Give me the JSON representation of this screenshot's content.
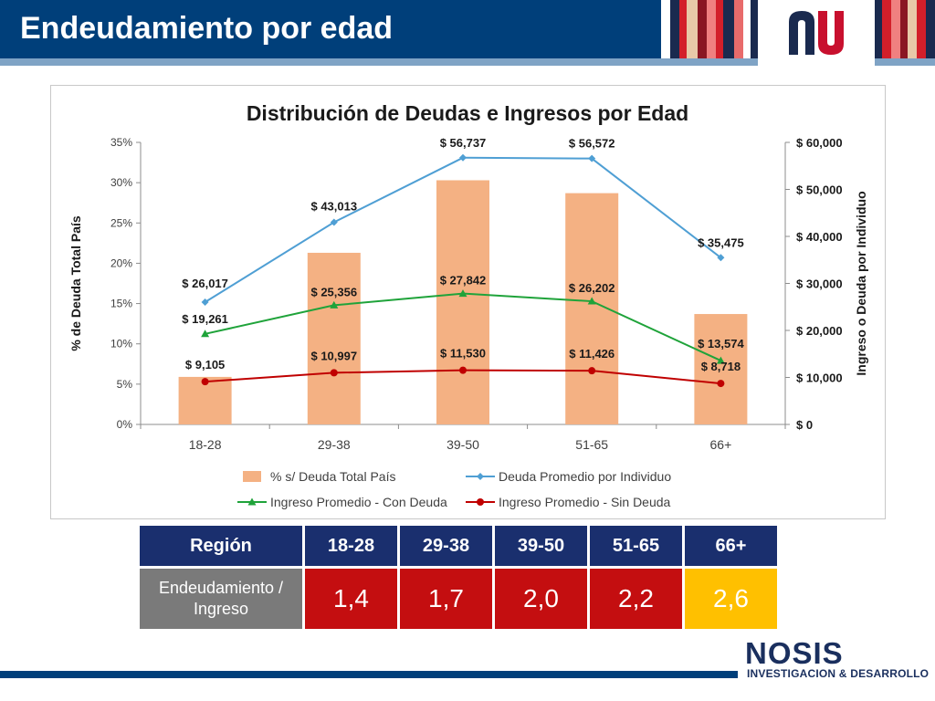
{
  "slide": {
    "title": "Endeudamiento por edad"
  },
  "chart_data": {
    "type": "bar",
    "title": "Distribución de Deudas e Ingresos por Edad",
    "categories": [
      "18-28",
      "29-38",
      "39-50",
      "51-65",
      "66+"
    ],
    "ylabel": "% de Deuda Total País",
    "y2label": "Ingreso o Deuda por Individuo",
    "ylim": [
      0,
      35
    ],
    "y2lim": [
      0,
      60000
    ],
    "yticks": [
      "0%",
      "5%",
      "10%",
      "15%",
      "20%",
      "25%",
      "30%",
      "35%"
    ],
    "y2ticks": [
      "$ 0",
      "$ 10,000",
      "$ 20,000",
      "$ 30,000",
      "$ 40,000",
      "$ 50,000",
      "$ 60,000"
    ],
    "legend_position": "bottom",
    "grid": false,
    "series": [
      {
        "name": "% s/ Deuda Total País",
        "kind": "bar",
        "axis": "left",
        "color": "#f4b183",
        "values": [
          5.9,
          21.3,
          30.3,
          28.7,
          13.7
        ],
        "labels": [
          "",
          "",
          "",
          "",
          ""
        ]
      },
      {
        "name": "Deuda Promedio por Individuo",
        "kind": "line",
        "axis": "right",
        "color": "#4f9fd4",
        "marker": "diamond",
        "values": [
          26017,
          43013,
          56737,
          56572,
          35475
        ],
        "labels": [
          "$ 26,017",
          "$ 43,013",
          "$ 56,737",
          "$ 56,572",
          "$ 35,475"
        ]
      },
      {
        "name": "Ingreso Promedio - Con Deuda",
        "kind": "line",
        "axis": "right",
        "color": "#1fa33a",
        "marker": "triangle",
        "values": [
          19261,
          25356,
          27842,
          26202,
          13574
        ],
        "labels": [
          "$ 19,261",
          "$ 25,356",
          "$ 27,842",
          "$ 26,202",
          "$ 13,574"
        ]
      },
      {
        "name": "Ingreso Promedio - Sin Deuda",
        "kind": "line",
        "axis": "right",
        "color": "#c00000",
        "marker": "circle",
        "values": [
          9105,
          10997,
          11530,
          11426,
          8718
        ],
        "labels": [
          "$ 9,105",
          "$ 10,997",
          "$ 11,530",
          "$ 11,426",
          "$ 8,718"
        ]
      }
    ]
  },
  "table": {
    "header_label": "Región",
    "columns": [
      "18-28",
      "29-38",
      "39-50",
      "51-65",
      "66+"
    ],
    "row_label": "Endeudamiento / Ingreso",
    "values": [
      "1,4",
      "1,7",
      "2,0",
      "2,2",
      "2,6"
    ],
    "highlight_color": "#ffc000",
    "value_color": "#c40e10"
  },
  "logo": {
    "name": "NOSIS",
    "subtitle": "INVESTIGACION & DESARROLLO"
  }
}
